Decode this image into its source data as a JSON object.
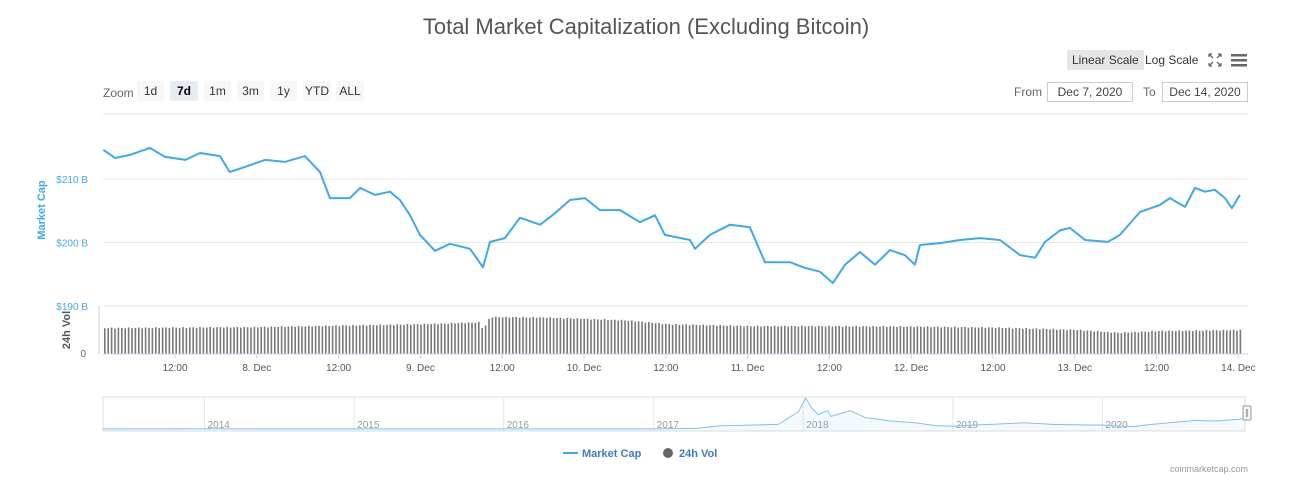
{
  "title": "Total Market Capitalization (Excluding Bitcoin)",
  "toolbar": {
    "scales": [
      "Linear Scale",
      "Log Scale"
    ],
    "selected_scale": "Linear Scale",
    "icons": [
      "fullscreen-icon",
      "menu-icon"
    ],
    "zoom_label": "Zoom",
    "zoom_buttons": [
      "1d",
      "7d",
      "1m",
      "3m",
      "1y",
      "YTD",
      "ALL"
    ],
    "selected_zoom": "7d",
    "from_label": "From",
    "from_value": "Dec 7, 2020",
    "to_label": "To",
    "to_value": "Dec 14, 2020"
  },
  "colors": {
    "market_cap": "#3fa9e8",
    "volume": "#777777",
    "grid": "#e6e6e6"
  },
  "chart_data": {
    "type": "line",
    "ylabel": "Market Cap",
    "y_ticks": [
      "$210 B",
      "$200 B",
      "$190 B"
    ],
    "y_tick_values": [
      210,
      200,
      190
    ],
    "x_ticks": [
      "12:00",
      "8. Dec",
      "12:00",
      "9. Dec",
      "12:00",
      "10. Dec",
      "12:00",
      "11. Dec",
      "12:00",
      "12. Dec",
      "12:00",
      "13. Dec",
      "12:00",
      "14. Dec"
    ],
    "x_range": [
      "2020-12-07T01:30",
      "2020-12-14T01:00"
    ],
    "grid": true,
    "series": [
      {
        "name": "Market Cap",
        "unit": "B USD",
        "points": [
          [
            "2020-12-07T01:30",
            214.6
          ],
          [
            "2020-12-07T03:15",
            213.3
          ],
          [
            "2020-12-07T05:25",
            213.8
          ],
          [
            "2020-12-07T08:20",
            214.9
          ],
          [
            "2020-12-07T10:30",
            213.5
          ],
          [
            "2020-12-07T13:30",
            213.0
          ],
          [
            "2020-12-07T15:40",
            214.1
          ],
          [
            "2020-12-07T18:35",
            213.6
          ],
          [
            "2020-12-07T20:00",
            211.1
          ],
          [
            "2020-12-07T22:15",
            211.9
          ],
          [
            "2020-12-08T01:10",
            213.0
          ],
          [
            "2020-12-08T04:05",
            212.7
          ],
          [
            "2020-12-08T07:00",
            213.6
          ],
          [
            "2020-12-08T09:13",
            211.1
          ],
          [
            "2020-12-08T10:40",
            207.0
          ],
          [
            "2020-12-08T13:36",
            207.0
          ],
          [
            "2020-12-08T15:05",
            208.6
          ],
          [
            "2020-12-08T17:16",
            207.5
          ],
          [
            "2020-12-08T19:28",
            208.0
          ],
          [
            "2020-12-08T20:55",
            206.7
          ],
          [
            "2020-12-08T22:23",
            204.3
          ],
          [
            "2020-12-08T23:51",
            201.2
          ],
          [
            "2020-12-09T02:03",
            198.7
          ],
          [
            "2020-12-09T04:15",
            199.8
          ],
          [
            "2020-12-09T07:10",
            199.0
          ],
          [
            "2020-12-09T09:04",
            196.1
          ],
          [
            "2020-12-09T10:06",
            200.1
          ],
          [
            "2020-12-09T12:17",
            200.7
          ],
          [
            "2020-12-09T14:29",
            203.9
          ],
          [
            "2020-12-09T17:25",
            202.8
          ],
          [
            "2020-12-09T19:36",
            204.6
          ],
          [
            "2020-12-09T21:48",
            206.7
          ],
          [
            "2020-12-10T00:00",
            207.0
          ],
          [
            "2020-12-10T02:12",
            205.1
          ],
          [
            "2020-12-10T05:07",
            205.1
          ],
          [
            "2020-12-10T08:03",
            203.2
          ],
          [
            "2020-12-10T10:15",
            204.3
          ],
          [
            "2020-12-10T11:42",
            201.2
          ],
          [
            "2020-12-10T15:22",
            200.4
          ],
          [
            "2020-12-10T16:06",
            199.0
          ],
          [
            "2020-12-10T18:17",
            201.2
          ],
          [
            "2020-12-10T21:13",
            202.8
          ],
          [
            "2020-12-11T00:08",
            202.4
          ],
          [
            "2020-12-11T02:20",
            196.9
          ],
          [
            "2020-12-11T06:00",
            196.9
          ],
          [
            "2020-12-11T08:12",
            196.0
          ],
          [
            "2020-12-11T10:23",
            195.4
          ],
          [
            "2020-12-11T12:17",
            193.6
          ],
          [
            "2020-12-11T14:03",
            196.5
          ],
          [
            "2020-12-11T16:14",
            198.5
          ],
          [
            "2020-12-11T18:26",
            196.5
          ],
          [
            "2020-12-11T20:38",
            198.8
          ],
          [
            "2020-12-11T22:50",
            198.0
          ],
          [
            "2020-12-12T00:17",
            196.5
          ],
          [
            "2020-12-12T01:01",
            199.6
          ],
          [
            "2020-12-12T03:57",
            199.9
          ],
          [
            "2020-12-12T06:52",
            200.4
          ],
          [
            "2020-12-12T09:48",
            200.7
          ],
          [
            "2020-12-12T12:44",
            200.4
          ],
          [
            "2020-12-12T15:40",
            198.0
          ],
          [
            "2020-12-12T17:52",
            197.6
          ],
          [
            "2020-12-12T19:19",
            200.1
          ],
          [
            "2020-12-12T21:31",
            201.9
          ],
          [
            "2020-12-12T22:58",
            202.3
          ],
          [
            "2020-12-13T01:10",
            200.4
          ],
          [
            "2020-12-13T04:32",
            200.1
          ],
          [
            "2020-12-13T06:17",
            201.2
          ],
          [
            "2020-12-13T09:13",
            204.8
          ],
          [
            "2020-12-13T12:08",
            205.9
          ],
          [
            "2020-12-13T13:36",
            207.0
          ],
          [
            "2020-12-13T15:48",
            205.6
          ],
          [
            "2020-12-13T17:16",
            208.6
          ],
          [
            "2020-12-13T18:43",
            208.0
          ],
          [
            "2020-12-13T20:11",
            208.3
          ],
          [
            "2020-12-13T21:39",
            207.0
          ],
          [
            "2020-12-13T22:40",
            205.4
          ],
          [
            "2020-12-13T23:50",
            207.5
          ]
        ]
      }
    ],
    "volume": {
      "name": "24h Vol",
      "y_ticks": [
        "0"
      ],
      "relative_to_axis_max": [
        [
          "2020-12-07T01:30",
          0.54
        ],
        [
          "2020-12-07T12:00",
          0.55
        ],
        [
          "2020-12-08T00:00",
          0.56
        ],
        [
          "2020-12-08T12:00",
          0.59
        ],
        [
          "2020-12-09T00:00",
          0.62
        ],
        [
          "2020-12-09T08:30",
          0.66
        ],
        [
          "2020-12-09T09:00",
          0.5
        ],
        [
          "2020-12-09T10:00",
          0.77
        ],
        [
          "2020-12-09T18:00",
          0.76
        ],
        [
          "2020-12-10T06:00",
          0.7
        ],
        [
          "2020-12-10T12:00",
          0.62
        ],
        [
          "2020-12-11T00:00",
          0.58
        ],
        [
          "2020-12-11T12:00",
          0.58
        ],
        [
          "2020-12-12T00:00",
          0.57
        ],
        [
          "2020-12-12T12:00",
          0.55
        ],
        [
          "2020-12-13T00:00",
          0.5
        ],
        [
          "2020-12-13T06:00",
          0.44
        ],
        [
          "2020-12-13T12:00",
          0.48
        ],
        [
          "2020-12-14T01:00",
          0.5
        ]
      ]
    },
    "navigator": {
      "x_ticks": [
        "2014",
        "2015",
        "2016",
        "2017",
        "2018",
        "2019",
        "2020"
      ],
      "points": [
        [
          "2013-04-28",
          2
        ],
        [
          "2014-01-01",
          3
        ],
        [
          "2015-01-01",
          2
        ],
        [
          "2016-01-01",
          1
        ],
        [
          "2017-01-01",
          2
        ],
        [
          "2017-04-15",
          10
        ],
        [
          "2017-06-15",
          55
        ],
        [
          "2017-09-01",
          70
        ],
        [
          "2017-11-01",
          80
        ],
        [
          "2017-12-20",
          300
        ],
        [
          "2018-01-07",
          540
        ],
        [
          "2018-01-20",
          380
        ],
        [
          "2018-02-06",
          250
        ],
        [
          "2018-03-01",
          320
        ],
        [
          "2018-03-10",
          220
        ],
        [
          "2018-04-25",
          320
        ],
        [
          "2018-06-01",
          200
        ],
        [
          "2018-08-01",
          140
        ],
        [
          "2018-10-01",
          110
        ],
        [
          "2018-11-20",
          60
        ],
        [
          "2019-01-01",
          50
        ],
        [
          "2019-03-01",
          70
        ],
        [
          "2019-06-25",
          110
        ],
        [
          "2019-09-01",
          80
        ],
        [
          "2019-12-01",
          70
        ],
        [
          "2020-01-01",
          70
        ],
        [
          "2020-03-13",
          40
        ],
        [
          "2020-05-01",
          80
        ],
        [
          "2020-08-15",
          150
        ],
        [
          "2020-10-01",
          140
        ],
        [
          "2020-12-01",
          170
        ],
        [
          "2020-12-14",
          210
        ]
      ]
    },
    "legend": [
      "Market Cap",
      "24h Vol"
    ],
    "legend_placement": "bottom-center"
  },
  "credit": "coinmarketcap.com"
}
